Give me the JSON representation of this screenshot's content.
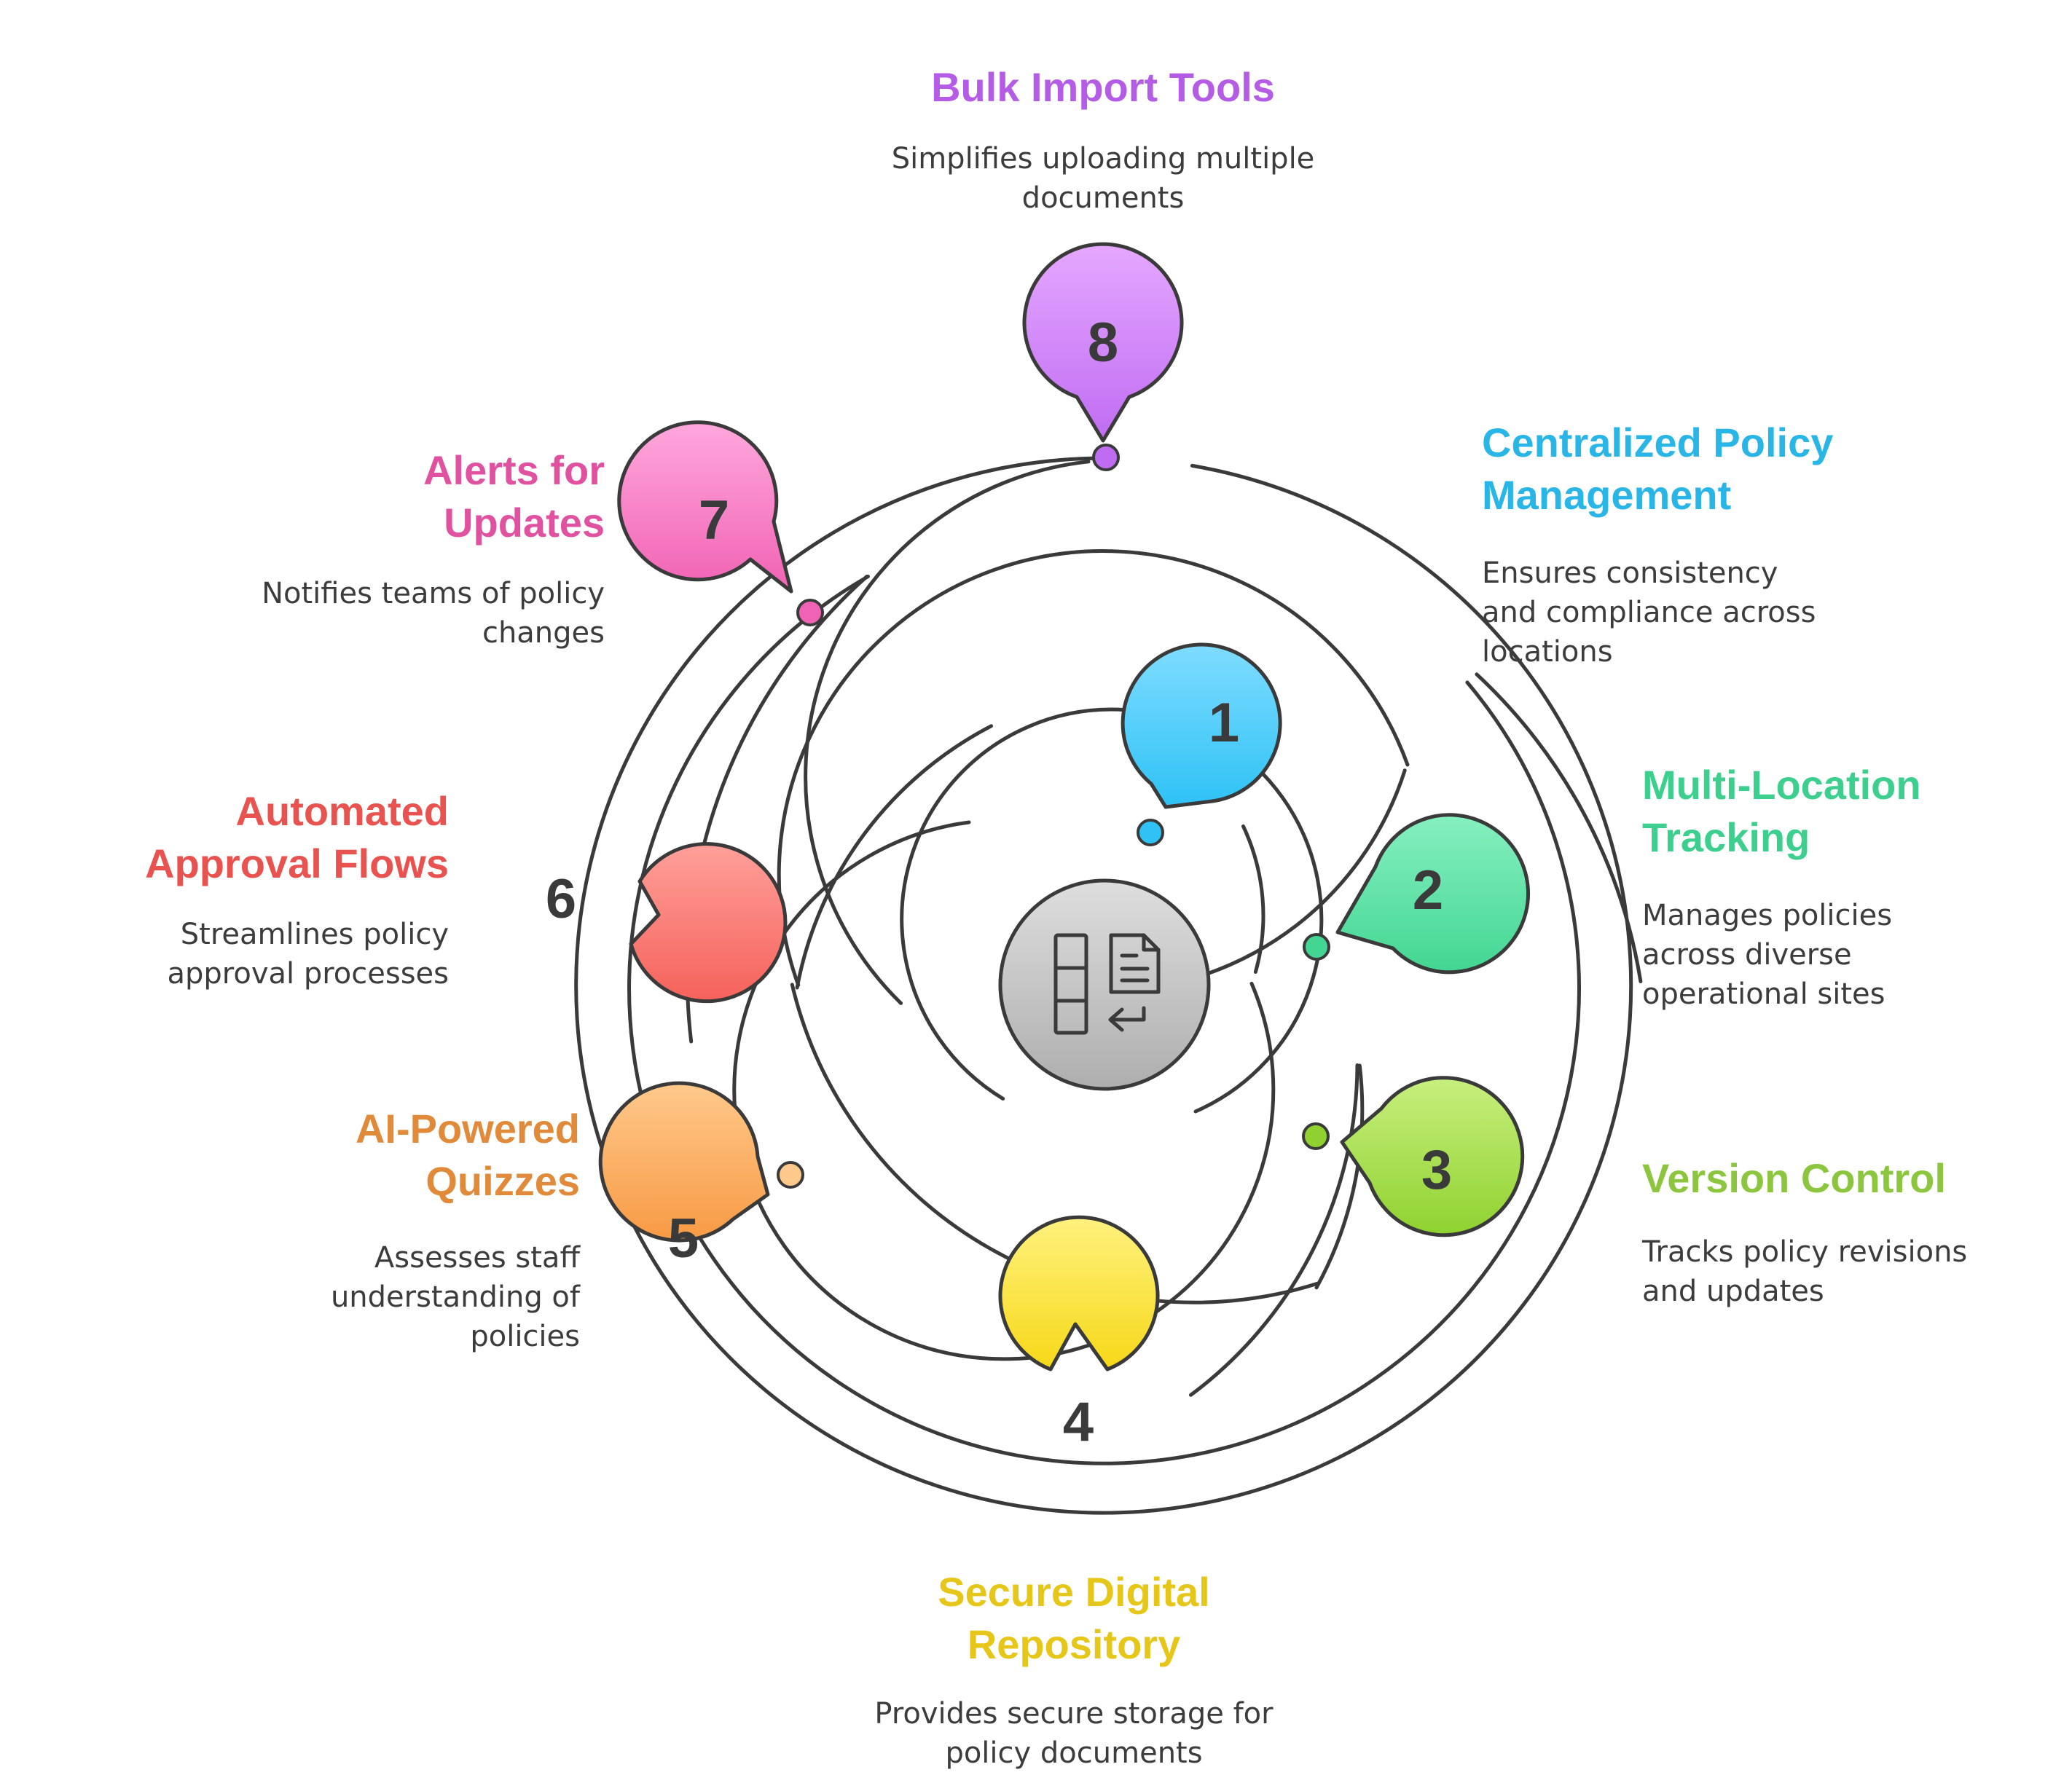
{
  "center_icon": "policy-documents-icon",
  "items": [
    {
      "number": "1",
      "title": "Centralized Policy\nManagement",
      "description": "Ensures consistency\nand compliance across\nlocations",
      "color": "#29b6e6"
    },
    {
      "number": "2",
      "title": "Multi-Location\nTracking",
      "description": "Manages policies\nacross diverse\noperational sites",
      "color": "#3ccf8e"
    },
    {
      "number": "3",
      "title": "Version Control",
      "description": "Tracks policy revisions\nand updates",
      "color": "#8cc63f"
    },
    {
      "number": "4",
      "title": "Secure Digital\nRepository",
      "description": "Provides secure storage for\npolicy documents",
      "color": "#e6c619"
    },
    {
      "number": "5",
      "title": "AI-Powered\nQuizzes",
      "description": "Assesses staff\nunderstanding of\npolicies",
      "color": "#e08a3a"
    },
    {
      "number": "6",
      "title": "Automated\nApproval Flows",
      "description": "Streamlines policy\napproval processes",
      "color": "#e8524f"
    },
    {
      "number": "7",
      "title": "Alerts for\nUpdates",
      "description": "Notifies teams of policy\nchanges",
      "color": "#e052a0"
    },
    {
      "number": "8",
      "title": "Bulk Import Tools",
      "description": "Simplifies uploading multiple\ndocuments",
      "color": "#b55ce6"
    }
  ]
}
